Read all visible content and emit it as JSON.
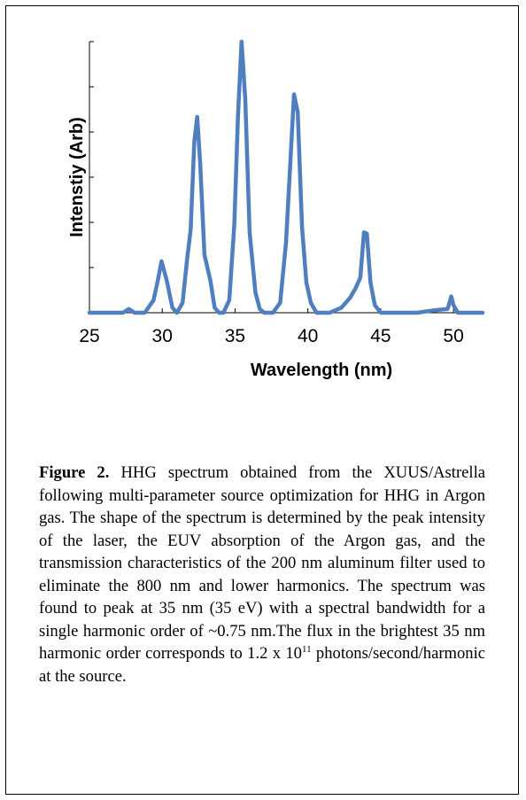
{
  "chart_data": {
    "type": "line",
    "xlabel": "Wavelength (nm)",
    "ylabel": "Intenstiy (Arb)",
    "xlim": [
      25,
      52
    ],
    "ylim": [
      0,
      1.08
    ],
    "xticks": [
      25,
      30,
      35,
      40,
      45,
      50
    ],
    "yticks_count": 6,
    "y_tick_labels": false,
    "grid": false,
    "series": [
      {
        "color": "#4f7fbf",
        "x": [
          25.0,
          27.3,
          27.7,
          28.1,
          28.8,
          29.4,
          29.7,
          29.95,
          30.3,
          30.7,
          31.0,
          31.4,
          31.7,
          31.95,
          32.2,
          32.4,
          32.6,
          32.9,
          33.3,
          33.6,
          33.9,
          34.2,
          34.6,
          34.95,
          35.2,
          35.45,
          35.7,
          36.0,
          36.4,
          36.7,
          37.0,
          37.6,
          38.1,
          38.5,
          38.8,
          39.05,
          39.3,
          39.6,
          39.9,
          40.2,
          40.6,
          41.0,
          41.5,
          42.3,
          42.9,
          43.3,
          43.6,
          43.85,
          44.05,
          44.3,
          44.6,
          45.0,
          45.6,
          47.5,
          48.7,
          49.6,
          49.85,
          50.0,
          50.3,
          51.0,
          52.0
        ],
        "y": [
          0.0,
          0.0,
          0.015,
          0.0,
          0.0,
          0.05,
          0.13,
          0.205,
          0.13,
          0.02,
          0.0,
          0.04,
          0.21,
          0.33,
          0.68,
          0.78,
          0.6,
          0.23,
          0.13,
          0.02,
          0.0,
          0.0,
          0.05,
          0.35,
          0.78,
          1.08,
          0.85,
          0.32,
          0.08,
          0.015,
          0.0,
          0.0,
          0.04,
          0.28,
          0.6,
          0.87,
          0.8,
          0.34,
          0.12,
          0.04,
          0.0,
          0.0,
          0.0,
          0.02,
          0.06,
          0.1,
          0.14,
          0.32,
          0.315,
          0.12,
          0.03,
          0.0,
          0.0,
          0.0,
          0.01,
          0.015,
          0.065,
          0.03,
          0.0,
          0.0,
          0.0
        ]
      }
    ]
  },
  "caption": {
    "label": "Figure 2.",
    "text": " HHG spectrum obtained from the XUUS/Astrella following multi-parameter source optimization for HHG in Argon gas. The shape of the spectrum is determined by the peak intensity of the laser, the EUV absorption of the Argon gas, and the transmission characteristics of the 200 nm aluminum filter used to eliminate the 800 nm and lower harmonics. The spectrum was found to peak at 35 nm (35 eV) with a spectral bandwidth for a single harmonic order of ~0.75 nm.The flux in the brightest 35 nm harmonic order corresponds to ",
    "flux_base": "1.2 x 10",
    "flux_exponent": "11",
    "flux_tail": " photons/second/harmonic at the source."
  }
}
